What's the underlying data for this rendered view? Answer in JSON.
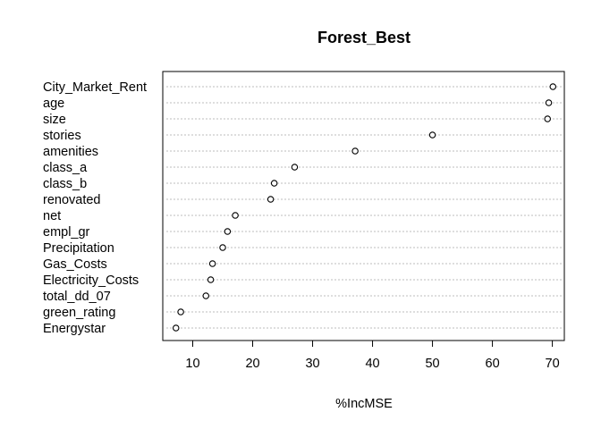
{
  "chart_data": {
    "type": "scatter",
    "title": "Forest_Best",
    "xlabel": "%IncMSE",
    "ylabel": "",
    "xlim": [
      5,
      72
    ],
    "xticks": [
      10,
      20,
      30,
      40,
      50,
      60,
      70
    ],
    "grid": "horizontal dotted guide lines per variable",
    "categories": [
      "City_Market_Rent",
      "age",
      "size",
      "stories",
      "amenities",
      "class_a",
      "class_b",
      "renovated",
      "net",
      "empl_gr",
      "Precipitation",
      "Gas_Costs",
      "Electricity_Costs",
      "total_dd_07",
      "green_rating",
      "Energystar"
    ],
    "values": [
      70.1,
      69.4,
      69.2,
      50.0,
      37.1,
      27.0,
      23.6,
      23.0,
      17.1,
      15.8,
      15.0,
      13.3,
      13.0,
      12.2,
      8.0,
      7.2
    ]
  }
}
